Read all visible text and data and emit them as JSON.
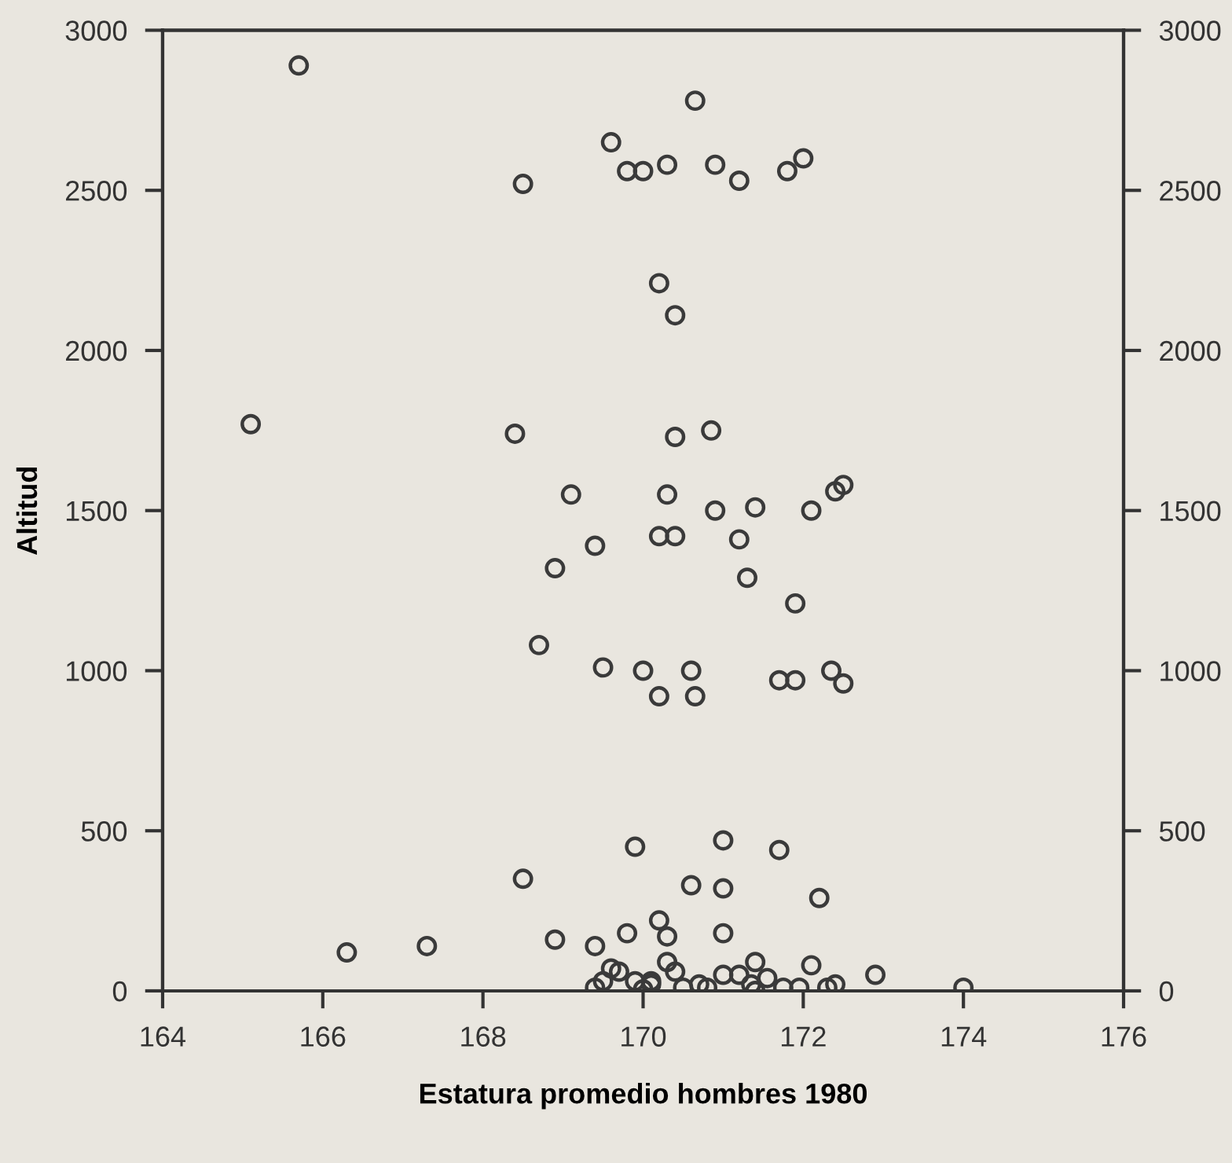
{
  "chart_data": {
    "type": "scatter",
    "xlabel": "Estatura promedio hombres 1980",
    "ylabel": "Altitud",
    "xlim": [
      164,
      176
    ],
    "xticks": [
      164,
      166,
      168,
      170,
      172,
      174,
      176
    ],
    "ylim": [
      0,
      3000
    ],
    "yticks": [
      0,
      500,
      1000,
      1500,
      2000,
      2500,
      3000
    ],
    "y2lim": [
      0,
      3000
    ],
    "y2ticks": [
      0,
      500,
      1000,
      1500,
      2000,
      2500,
      3000
    ],
    "marker": "circle",
    "grid": false,
    "series": [
      {
        "color": "#3a3a3a",
        "x": [
          165.7,
          165.1,
          168.5,
          169.6,
          169.8,
          170.0,
          170.3,
          170.65,
          170.9,
          171.2,
          171.8,
          172.0,
          170.2,
          170.4,
          168.4,
          170.4,
          170.85,
          169.1,
          170.3,
          170.9,
          171.4,
          172.1,
          172.4,
          172.5,
          170.2,
          170.4,
          169.4,
          168.9,
          171.2,
          171.3,
          171.9,
          168.7,
          169.5,
          170.0,
          170.6,
          170.2,
          170.65,
          171.7,
          171.9,
          172.35,
          172.5,
          169.9,
          171.0,
          171.7,
          168.5,
          170.6,
          171.0,
          172.2,
          170.2,
          170.3,
          169.8,
          171.0,
          168.9,
          169.4,
          167.3,
          166.3,
          170.3,
          170.4,
          169.6,
          169.7,
          169.9,
          170.1,
          170.1,
          169.4,
          169.5,
          170.5,
          171.0,
          171.2,
          171.4,
          171.55,
          172.1,
          172.9,
          170.7,
          170.8,
          171.35,
          171.4,
          171.75,
          171.95,
          172.3,
          172.4,
          174.0,
          170.0
        ],
        "values": [
          2890,
          1770,
          2520,
          2650,
          2560,
          2560,
          2580,
          2780,
          2580,
          2530,
          2560,
          2600,
          2210,
          2110,
          1740,
          1730,
          1750,
          1550,
          1550,
          1500,
          1510,
          1500,
          1560,
          1580,
          1420,
          1420,
          1390,
          1320,
          1410,
          1290,
          1210,
          1080,
          1010,
          1000,
          1000,
          920,
          920,
          970,
          970,
          1000,
          960,
          450,
          470,
          440,
          350,
          330,
          320,
          290,
          220,
          170,
          180,
          180,
          160,
          140,
          140,
          120,
          90,
          60,
          70,
          60,
          30,
          30,
          20,
          10,
          30,
          10,
          50,
          50,
          90,
          40,
          80,
          50,
          20,
          10,
          20,
          0,
          10,
          10,
          10,
          20,
          10,
          5
        ]
      }
    ]
  }
}
